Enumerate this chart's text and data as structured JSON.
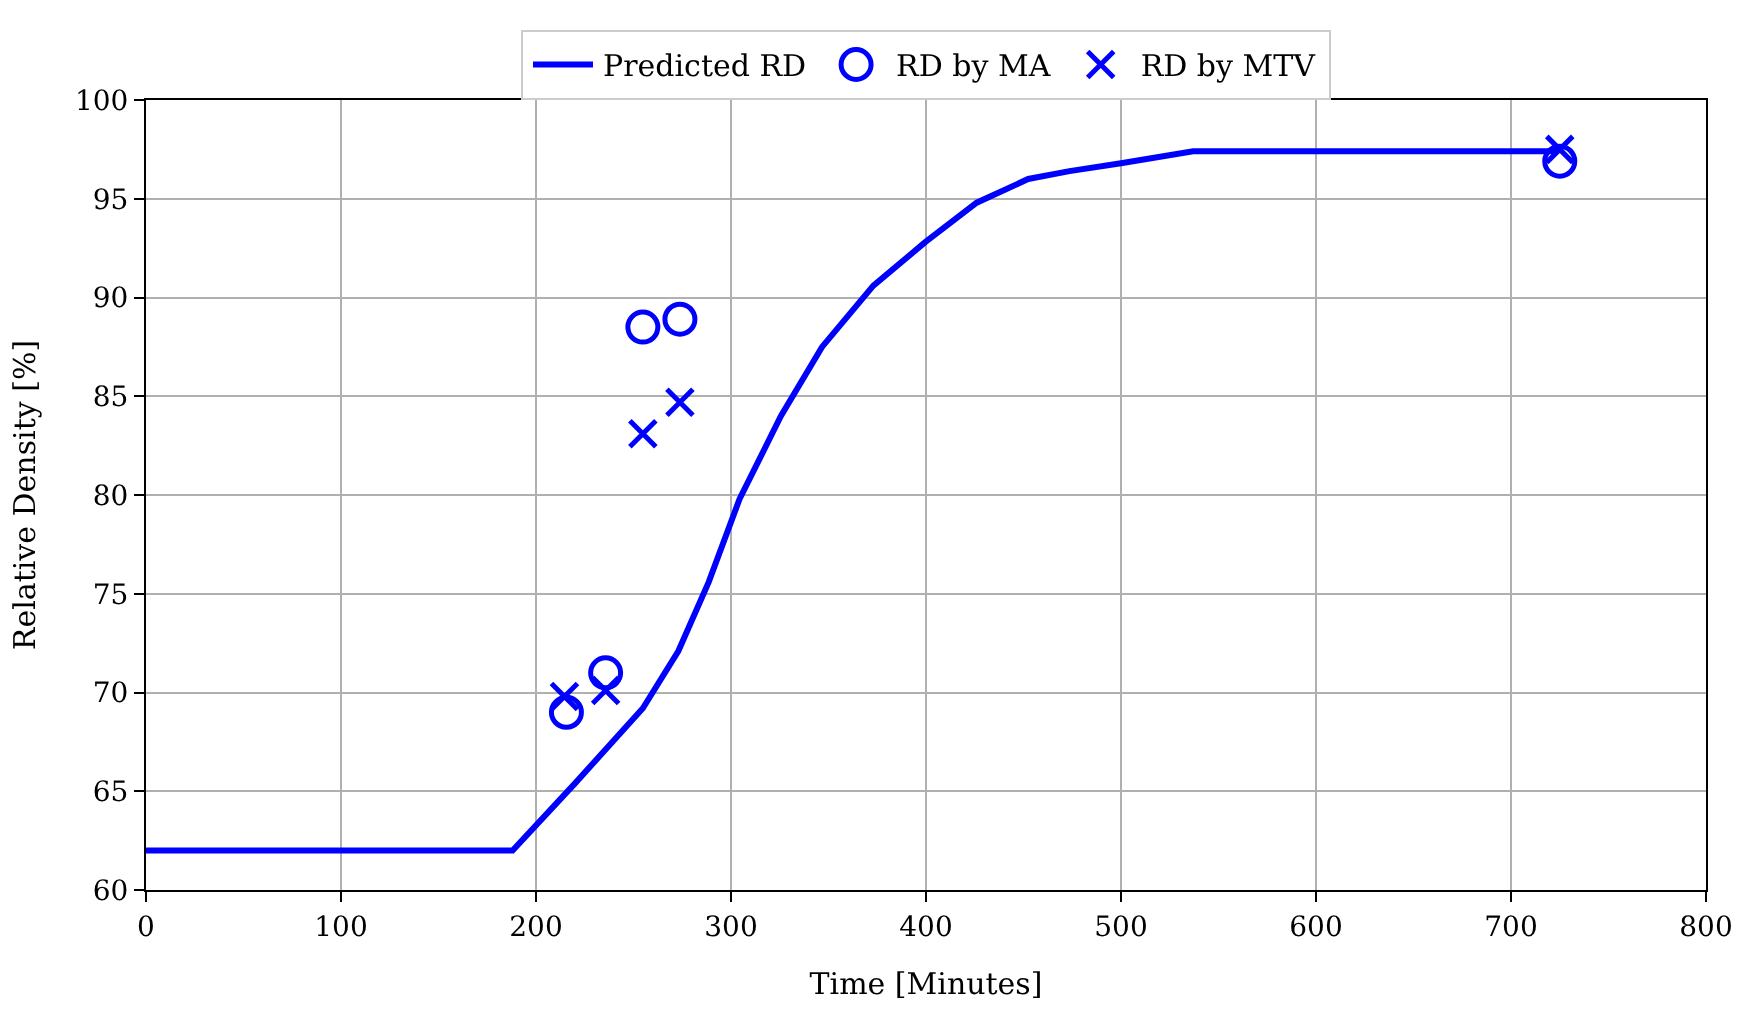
{
  "chart_data": {
    "type": "line",
    "xlabel": "Time [Minutes]",
    "ylabel": "Relative Density [%]",
    "xlim": [
      0,
      800
    ],
    "xticks": [
      0,
      100,
      200,
      300,
      400,
      500,
      600,
      700,
      800
    ],
    "ylim": [
      60,
      100
    ],
    "yticks": [
      60,
      65,
      70,
      75,
      80,
      85,
      90,
      95,
      100
    ],
    "grid": true,
    "legend": "top",
    "series": [
      {
        "name": "Predicted RD",
        "color": "#0000ff",
        "marker": "none",
        "line_style": "solid",
        "x": [
          0,
          188,
          220,
          254.8,
          273,
          288.6,
          304.4,
          325.6,
          346.7,
          373,
          399.6,
          426,
          452.4,
          473.6,
          500,
          537,
          724
        ],
        "values": [
          62,
          62,
          65.4,
          69.2,
          72.1,
          75.6,
          79.8,
          84.0,
          87.5,
          90.6,
          92.8,
          94.8,
          96.0,
          96.4,
          96.8,
          97.4,
          97.4
        ]
      },
      {
        "name": "RD by MA",
        "type": "scatter",
        "color": "#0000ff",
        "marker": "circle",
        "x": [
          215.6,
          235.7,
          254.8,
          273.8,
          725
        ],
        "values": [
          69.0,
          71.0,
          88.5,
          88.9,
          96.9
        ]
      },
      {
        "name": "RD by MTV",
        "type": "scatter",
        "color": "#0000ff",
        "marker": "cross",
        "x": [
          214.6,
          235.7,
          254.8,
          273.8,
          725
        ],
        "values": [
          69.8,
          70.1,
          83.1,
          84.7,
          97.5
        ]
      }
    ]
  }
}
